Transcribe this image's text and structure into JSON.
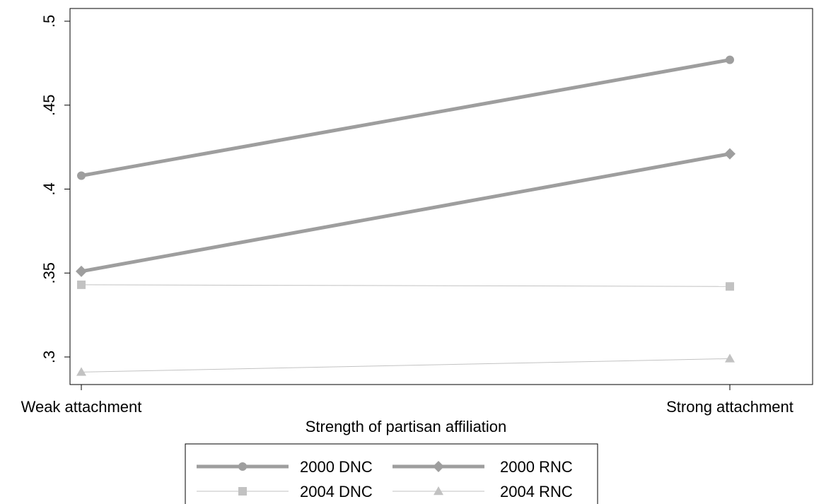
{
  "chart_data": {
    "type": "line",
    "title": "",
    "xlabel": "Strength of partisan affiliation",
    "ylabel": "",
    "categories": [
      "Weak attachment",
      "Strong attachment"
    ],
    "ylim": [
      0.3,
      0.5
    ],
    "yticks": [
      {
        "value": 0.3,
        "label": ".3"
      },
      {
        "value": 0.35,
        "label": ".35"
      },
      {
        "value": 0.4,
        "label": ".4"
      },
      {
        "value": 0.45,
        "label": ".45"
      },
      {
        "value": 0.5,
        "label": ".5"
      }
    ],
    "grid": false,
    "legend_position": "bottom-center",
    "series": [
      {
        "name": "2000 DNC",
        "values": [
          0.408,
          0.477
        ],
        "marker": "circle",
        "color": "#9e9e9e",
        "line": "thick"
      },
      {
        "name": "2000 RNC",
        "values": [
          0.351,
          0.421
        ],
        "marker": "diamond",
        "color": "#9e9e9e",
        "line": "thick"
      },
      {
        "name": "2004 DNC",
        "values": [
          0.343,
          0.342
        ],
        "marker": "square",
        "color": "#c2c2c2",
        "line": "thin"
      },
      {
        "name": "2004 RNC",
        "values": [
          0.291,
          0.299
        ],
        "marker": "triangle",
        "color": "#c2c2c2",
        "line": "thin"
      }
    ]
  }
}
